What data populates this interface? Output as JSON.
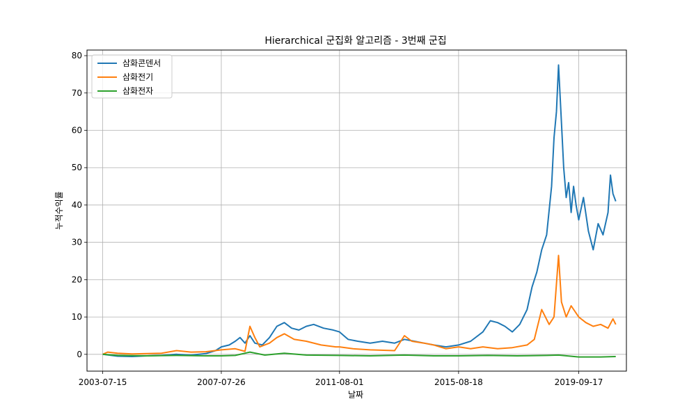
{
  "chart_data": {
    "type": "line",
    "title": "Hierarchical 군집화 알고리즘 - 3번째 군집",
    "xlabel": "날짜",
    "ylabel": "누적수익률",
    "x_tick_labels": [
      "2003-07-15",
      "2007-07-26",
      "2011-08-01",
      "2015-08-18",
      "2019-09-17"
    ],
    "x_ticks": [
      "2003-07-15",
      "2007-07-26",
      "2011-08-01",
      "2015-08-18",
      "2019-09-17"
    ],
    "xlim": [
      "2003-01-01",
      "2021-05-01"
    ],
    "y_ticks": [
      0,
      10,
      20,
      30,
      40,
      50,
      60,
      70,
      80
    ],
    "ylim": [
      -4.5,
      81.5
    ],
    "grid": true,
    "legend_position": "top-left",
    "series": [
      {
        "name": "삼화콘덴서",
        "color": "#1f77b4",
        "points": [
          [
            "2003-07-15",
            0
          ],
          [
            "2004-01-15",
            -0.5
          ],
          [
            "2004-07-15",
            -0.6
          ],
          [
            "2005-01-15",
            -0.4
          ],
          [
            "2005-07-15",
            -0.3
          ],
          [
            "2006-01-15",
            0
          ],
          [
            "2006-07-15",
            -0.2
          ],
          [
            "2007-01-15",
            0.2
          ],
          [
            "2007-05-15",
            1.0
          ],
          [
            "2007-07-26",
            2.0
          ],
          [
            "2007-11-01",
            2.5
          ],
          [
            "2008-01-15",
            3.5
          ],
          [
            "2008-03-15",
            4.5
          ],
          [
            "2008-05-15",
            3.0
          ],
          [
            "2008-07-15",
            5.0
          ],
          [
            "2008-09-15",
            3.0
          ],
          [
            "2008-12-15",
            2.5
          ],
          [
            "2009-03-15",
            4.5
          ],
          [
            "2009-06-15",
            7.5
          ],
          [
            "2009-09-15",
            8.5
          ],
          [
            "2009-12-15",
            7.0
          ],
          [
            "2010-03-15",
            6.5
          ],
          [
            "2010-06-15",
            7.5
          ],
          [
            "2010-09-15",
            8.0
          ],
          [
            "2011-01-15",
            7.0
          ],
          [
            "2011-05-15",
            6.5
          ],
          [
            "2011-08-01",
            6.0
          ],
          [
            "2011-11-15",
            4.0
          ],
          [
            "2012-03-15",
            3.5
          ],
          [
            "2012-08-15",
            3.0
          ],
          [
            "2013-01-15",
            3.5
          ],
          [
            "2013-06-15",
            3.0
          ],
          [
            "2013-10-15",
            4.0
          ],
          [
            "2014-02-15",
            3.5
          ],
          [
            "2014-06-15",
            3.0
          ],
          [
            "2014-10-15",
            2.5
          ],
          [
            "2015-03-15",
            2.0
          ],
          [
            "2015-08-18",
            2.5
          ],
          [
            "2016-01-15",
            3.5
          ],
          [
            "2016-06-15",
            6.0
          ],
          [
            "2016-09-15",
            9.0
          ],
          [
            "2016-12-15",
            8.5
          ],
          [
            "2017-03-15",
            7.5
          ],
          [
            "2017-06-15",
            6.0
          ],
          [
            "2017-09-15",
            8.0
          ],
          [
            "2017-12-15",
            12.0
          ],
          [
            "2018-02-15",
            18.0
          ],
          [
            "2018-04-15",
            22.0
          ],
          [
            "2018-06-15",
            28.0
          ],
          [
            "2018-08-15",
            32.0
          ],
          [
            "2018-10-15",
            45.0
          ],
          [
            "2018-11-15",
            58.0
          ],
          [
            "2018-12-15",
            65.0
          ],
          [
            "2019-01-10",
            77.5
          ],
          [
            "2019-02-15",
            62.0
          ],
          [
            "2019-03-15",
            50.0
          ],
          [
            "2019-04-15",
            42.0
          ],
          [
            "2019-05-15",
            46.0
          ],
          [
            "2019-06-15",
            38.0
          ],
          [
            "2019-07-15",
            45.0
          ],
          [
            "2019-08-15",
            40.0
          ],
          [
            "2019-09-17",
            36.0
          ],
          [
            "2019-11-15",
            42.0
          ],
          [
            "2020-01-15",
            33.0
          ],
          [
            "2020-03-15",
            28.0
          ],
          [
            "2020-05-15",
            35.0
          ],
          [
            "2020-07-15",
            32.0
          ],
          [
            "2020-09-15",
            38.0
          ],
          [
            "2020-10-15",
            48.0
          ],
          [
            "2020-11-15",
            43.0
          ],
          [
            "2020-12-20",
            41.0
          ]
        ]
      },
      {
        "name": "삼화전기",
        "color": "#ff7f0e",
        "points": [
          [
            "2003-07-15",
            0
          ],
          [
            "2003-09-15",
            0.6
          ],
          [
            "2004-01-15",
            0.3
          ],
          [
            "2004-07-15",
            0.1
          ],
          [
            "2005-01-15",
            0.2
          ],
          [
            "2005-07-15",
            0.3
          ],
          [
            "2006-01-15",
            1.0
          ],
          [
            "2006-07-15",
            0.6
          ],
          [
            "2007-01-15",
            0.7
          ],
          [
            "2007-07-26",
            1.2
          ],
          [
            "2008-01-15",
            1.5
          ],
          [
            "2008-05-15",
            0.8
          ],
          [
            "2008-07-15",
            7.5
          ],
          [
            "2008-09-15",
            4.5
          ],
          [
            "2008-11-15",
            2.0
          ],
          [
            "2009-03-15",
            3.0
          ],
          [
            "2009-06-15",
            4.5
          ],
          [
            "2009-09-15",
            5.5
          ],
          [
            "2010-01-15",
            4.0
          ],
          [
            "2010-06-15",
            3.5
          ],
          [
            "2010-12-15",
            2.5
          ],
          [
            "2011-06-15",
            2.0
          ],
          [
            "2011-08-01",
            2.0
          ],
          [
            "2012-01-15",
            1.5
          ],
          [
            "2012-08-15",
            1.2
          ],
          [
            "2013-06-15",
            1.0
          ],
          [
            "2013-10-15",
            5.0
          ],
          [
            "2014-01-15",
            3.5
          ],
          [
            "2014-06-15",
            3.0
          ],
          [
            "2014-10-15",
            2.5
          ],
          [
            "2015-03-15",
            1.5
          ],
          [
            "2015-08-18",
            2.0
          ],
          [
            "2016-01-15",
            1.5
          ],
          [
            "2016-06-15",
            2.0
          ],
          [
            "2016-12-15",
            1.5
          ],
          [
            "2017-06-15",
            1.8
          ],
          [
            "2017-12-15",
            2.5
          ],
          [
            "2018-03-15",
            4.0
          ],
          [
            "2018-06-15",
            12.0
          ],
          [
            "2018-09-15",
            8.0
          ],
          [
            "2018-11-15",
            10.0
          ],
          [
            "2019-01-10",
            26.5
          ],
          [
            "2019-02-15",
            14.0
          ],
          [
            "2019-04-15",
            10.0
          ],
          [
            "2019-06-15",
            13.0
          ],
          [
            "2019-09-17",
            10.0
          ],
          [
            "2019-12-15",
            8.5
          ],
          [
            "2020-03-15",
            7.5
          ],
          [
            "2020-06-15",
            8.0
          ],
          [
            "2020-09-15",
            7.0
          ],
          [
            "2020-11-15",
            9.5
          ],
          [
            "2020-12-20",
            8.0
          ]
        ]
      },
      {
        "name": "삼화전자",
        "color": "#2ca02c",
        "points": [
          [
            "2003-07-15",
            0
          ],
          [
            "2004-01-15",
            -0.3
          ],
          [
            "2005-01-15",
            -0.4
          ],
          [
            "2006-01-15",
            -0.3
          ],
          [
            "2007-01-15",
            -0.4
          ],
          [
            "2007-07-26",
            -0.4
          ],
          [
            "2008-01-15",
            -0.3
          ],
          [
            "2008-07-15",
            0.6
          ],
          [
            "2009-01-15",
            -0.2
          ],
          [
            "2009-09-15",
            0.3
          ],
          [
            "2010-06-15",
            -0.2
          ],
          [
            "2011-08-01",
            -0.3
          ],
          [
            "2012-08-15",
            -0.4
          ],
          [
            "2013-10-15",
            -0.2
          ],
          [
            "2014-10-15",
            -0.4
          ],
          [
            "2015-08-18",
            -0.4
          ],
          [
            "2016-08-15",
            -0.3
          ],
          [
            "2017-08-15",
            -0.4
          ],
          [
            "2018-08-15",
            -0.3
          ],
          [
            "2019-01-10",
            -0.2
          ],
          [
            "2019-09-17",
            -0.7
          ],
          [
            "2020-06-15",
            -0.7
          ],
          [
            "2020-12-20",
            -0.6
          ]
        ]
      }
    ]
  }
}
